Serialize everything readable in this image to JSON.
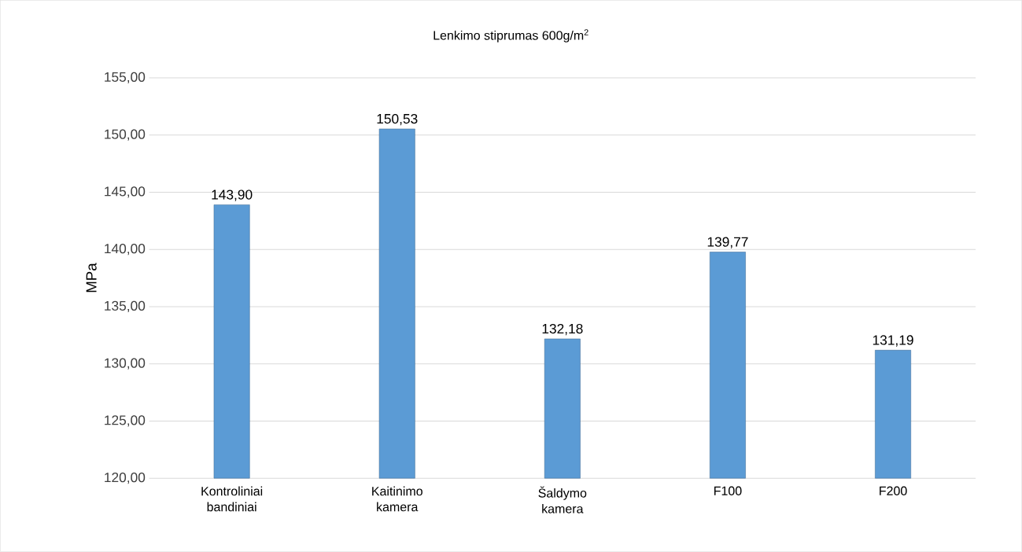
{
  "chart_data": {
    "type": "bar",
    "title": "Lenkimo stiprumas 600g/m$^{2}$",
    "ylabel": "MPa",
    "categories": [
      "Kontroliniai bandiniai",
      "Kaitinimo kamera",
      "Šaldymo kamera",
      "F100",
      "F200"
    ],
    "values": [
      143.9,
      150.53,
      132.18,
      139.77,
      131.19
    ],
    "value_labels": [
      "143,90",
      "150,53",
      "132,18",
      "139,77",
      "131,19"
    ],
    "color": "#5b9bd5",
    "ylim": [
      120,
      155
    ],
    "yticks": [
      {
        "value": 120,
        "label": "120,00"
      },
      {
        "value": 125,
        "label": "125,00"
      },
      {
        "value": 130,
        "label": "130,00"
      },
      {
        "value": 135,
        "label": "135,00"
      },
      {
        "value": 140,
        "label": "140,00"
      },
      {
        "value": 145,
        "label": "145,00"
      },
      {
        "value": 150,
        "label": "150,00"
      },
      {
        "value": 155,
        "label": "155,00"
      }
    ],
    "grid": "y"
  }
}
